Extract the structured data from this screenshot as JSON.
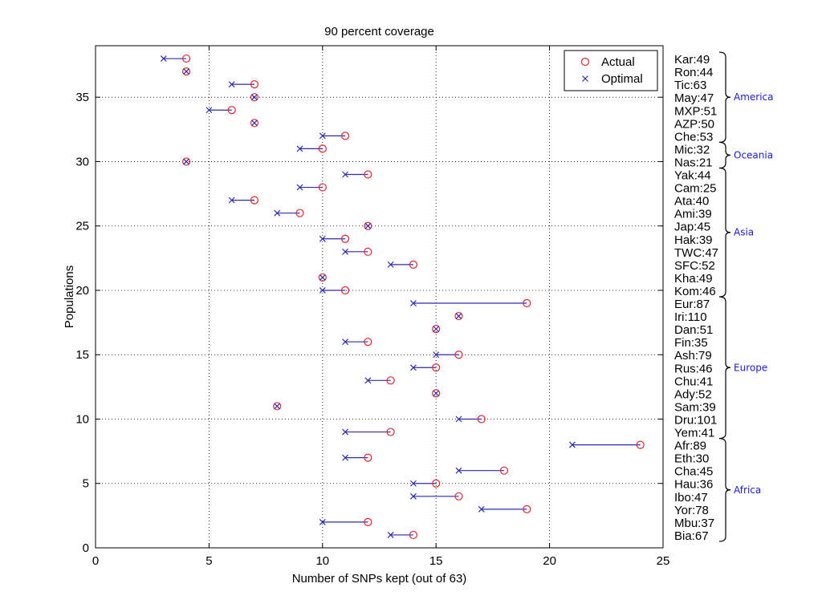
{
  "chart_data": {
    "type": "scatter",
    "title": "90 percent coverage",
    "xlabel": "Number of SNPs kept (out of 63)",
    "ylabel": "Populations",
    "xlim": [
      0,
      25
    ],
    "ylim": [
      0,
      39
    ],
    "xticks": [
      0,
      5,
      10,
      15,
      20,
      25
    ],
    "yticks": [
      0,
      5,
      10,
      15,
      20,
      25,
      30,
      35
    ],
    "grid": true,
    "legend_position": "top-right",
    "series": [
      {
        "name": "Actual",
        "marker": "circle",
        "color": "#e8262a"
      },
      {
        "name": "Optimal",
        "marker": "x",
        "color": "#2b2bb8"
      }
    ],
    "points": [
      {
        "y": 38,
        "label": "Kar:49",
        "actual": 4,
        "optimal": 3
      },
      {
        "y": 37,
        "label": "Ron:44",
        "actual": 4,
        "optimal": 4
      },
      {
        "y": 36,
        "label": "Tic:63",
        "actual": 7,
        "optimal": 6
      },
      {
        "y": 35,
        "label": "May:47",
        "actual": 7,
        "optimal": 7
      },
      {
        "y": 34,
        "label": "MXP:51",
        "actual": 6,
        "optimal": 5
      },
      {
        "y": 33,
        "label": "AZP:50",
        "actual": 7,
        "optimal": 7
      },
      {
        "y": 32,
        "label": "Che:53",
        "actual": 11,
        "optimal": 10
      },
      {
        "y": 31,
        "label": "Mic:32",
        "actual": 10,
        "optimal": 9
      },
      {
        "y": 30,
        "label": "Nas:21",
        "actual": 4,
        "optimal": 4
      },
      {
        "y": 29,
        "label": "Yak:44",
        "actual": 12,
        "optimal": 11
      },
      {
        "y": 28,
        "label": "Cam:25",
        "actual": 10,
        "optimal": 9
      },
      {
        "y": 27,
        "label": "Ata:40",
        "actual": 7,
        "optimal": 6
      },
      {
        "y": 26,
        "label": "Ami:39",
        "actual": 9,
        "optimal": 8
      },
      {
        "y": 25,
        "label": "Jap:45",
        "actual": 12,
        "optimal": 12
      },
      {
        "y": 24,
        "label": "Hak:39",
        "actual": 11,
        "optimal": 10
      },
      {
        "y": 23,
        "label": "TWC:47",
        "actual": 12,
        "optimal": 11
      },
      {
        "y": 22,
        "label": "SFC:52",
        "actual": 14,
        "optimal": 13
      },
      {
        "y": 21,
        "label": "Kha:49",
        "actual": 10,
        "optimal": 10
      },
      {
        "y": 20,
        "label": "Kom:46",
        "actual": 11,
        "optimal": 10
      },
      {
        "y": 19,
        "label": "Eur:87",
        "actual": 19,
        "optimal": 14
      },
      {
        "y": 18,
        "label": "Iri:110",
        "actual": 16,
        "optimal": 16
      },
      {
        "y": 17,
        "label": "Dan:51",
        "actual": 15,
        "optimal": 15
      },
      {
        "y": 16,
        "label": "Fin:35",
        "actual": 12,
        "optimal": 11
      },
      {
        "y": 15,
        "label": "Ash:79",
        "actual": 16,
        "optimal": 15
      },
      {
        "y": 14,
        "label": "Rus:46",
        "actual": 15,
        "optimal": 14
      },
      {
        "y": 13,
        "label": "Chu:41",
        "actual": 13,
        "optimal": 12
      },
      {
        "y": 12,
        "label": "Ady:52",
        "actual": 15,
        "optimal": 15
      },
      {
        "y": 11,
        "label": "Sam:39",
        "actual": 8,
        "optimal": 8
      },
      {
        "y": 10,
        "label": "Dru:101",
        "actual": 17,
        "optimal": 16
      },
      {
        "y": 9,
        "label": "Yem:41",
        "actual": 13,
        "optimal": 11
      },
      {
        "y": 8,
        "label": "Afr:89",
        "actual": 24,
        "optimal": 21
      },
      {
        "y": 7,
        "label": "Eth:30",
        "actual": 12,
        "optimal": 11
      },
      {
        "y": 6,
        "label": "Cha:45",
        "actual": 18,
        "optimal": 16
      },
      {
        "y": 5,
        "label": "Hau:36",
        "actual": 15,
        "optimal": 14
      },
      {
        "y": 4,
        "label": "Ibo:47",
        "actual": 16,
        "optimal": 14
      },
      {
        "y": 3,
        "label": "Yor:78",
        "actual": 19,
        "optimal": 17
      },
      {
        "y": 2,
        "label": "Mbu:37",
        "actual": 12,
        "optimal": 10
      },
      {
        "y": 1,
        "label": "Bia:67",
        "actual": 14,
        "optimal": 13
      }
    ],
    "regions": [
      {
        "name": "America",
        "y_from": 32,
        "y_to": 38
      },
      {
        "name": "Oceania",
        "y_from": 30,
        "y_to": 31
      },
      {
        "name": "Asia",
        "y_from": 20,
        "y_to": 29
      },
      {
        "name": "Europe",
        "y_from": 9,
        "y_to": 19
      },
      {
        "name": "Africa",
        "y_from": 1,
        "y_to": 8
      }
    ]
  }
}
